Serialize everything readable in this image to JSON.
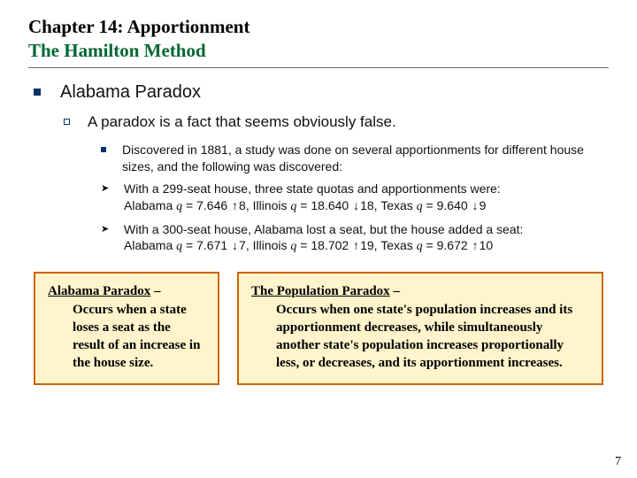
{
  "header": {
    "line1": "Chapter 14:  Apportionment",
    "line2": "The Hamilton Method"
  },
  "section": {
    "title": "Alabama Paradox",
    "sub": "A paradox is a fact that seems obviously false.",
    "items": [
      "Discovered in 1881, a study was done on several apportionments for different house sizes, and the following was discovered:",
      "With a 299-seat house, three state quotas and apportionments were:",
      "With a 300-seat house, Alabama lost a seat, but the house added a seat:"
    ],
    "row299": {
      "al_label": "Alabama ",
      "al_q": " = 7.646 ",
      "al_a": "8,  ",
      "il_label": "Illinois ",
      "il_q": " = 18.640 ",
      "il_a": "18,  ",
      "tx_label": "Texas ",
      "tx_q": " = 9.640 ",
      "tx_a": "9"
    },
    "row300": {
      "al_label": "Alabama ",
      "al_q": " = 7.671 ",
      "al_a": "7, ",
      "il_label": "Illinois ",
      "il_q": " = 18.702 ",
      "il_a": "19, ",
      "tx_label": "Texas ",
      "tx_q": " = 9.672 ",
      "tx_a": "10"
    }
  },
  "boxes": {
    "alabama": {
      "term": "Alabama Paradox",
      "dash": " – ",
      "def": "Occurs when a state loses a seat as the result of an increase in the house size."
    },
    "population": {
      "term": "The Population Paradox",
      "dash": " – ",
      "def": "Occurs when one state's population increases and its apportionment decreases, while simultaneously another state's population increases proportionally less, or decreases, and its apportionment increases."
    }
  },
  "page": "7",
  "glyphs": {
    "q": "q",
    "up": "↑",
    "down": "↓"
  }
}
